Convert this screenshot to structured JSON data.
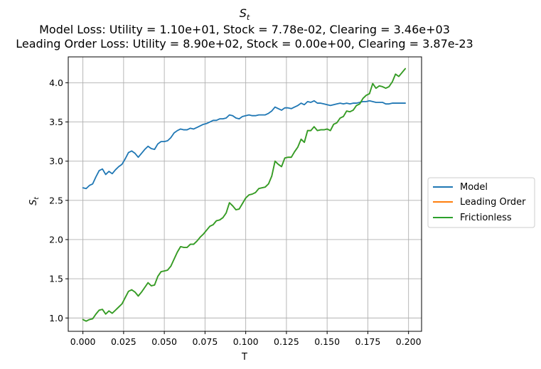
{
  "chart_data": {
    "type": "line",
    "title_main": "S",
    "title_sub": "t",
    "title_line2": "Model Loss: Utility = 1.10e+01, Stock = 7.78e-02, Clearing = 3.46e+03",
    "title_line3": "Leading Order Loss: Utility = 8.90e+02, Stock = 0.00e+00, Clearing = 3.87e-23",
    "xlabel": "T",
    "ylabel_main": "S",
    "ylabel_sub": "t",
    "xlim": [
      -0.009,
      0.208
    ],
    "ylim": [
      0.83,
      4.33
    ],
    "xticks": [
      0.0,
      0.025,
      0.05,
      0.075,
      0.1,
      0.125,
      0.15,
      0.175,
      0.2
    ],
    "xtick_labels": [
      "0.000",
      "0.025",
      "0.050",
      "0.075",
      "0.100",
      "0.125",
      "0.150",
      "0.175",
      "0.200"
    ],
    "yticks": [
      1.0,
      1.5,
      2.0,
      2.5,
      3.0,
      3.5,
      4.0
    ],
    "ytick_labels": [
      "1.0",
      "1.5",
      "2.0",
      "2.5",
      "3.0",
      "3.5",
      "4.0"
    ],
    "grid": true,
    "legend_position": "outside-right",
    "series": [
      {
        "name": "Model",
        "color": "#1f77b4",
        "x": [
          0.0,
          0.002,
          0.004,
          0.006,
          0.008,
          0.01,
          0.012,
          0.014,
          0.016,
          0.018,
          0.02,
          0.022,
          0.024,
          0.026,
          0.028,
          0.03,
          0.032,
          0.034,
          0.036,
          0.038,
          0.04,
          0.042,
          0.044,
          0.046,
          0.048,
          0.05,
          0.052,
          0.054,
          0.056,
          0.058,
          0.06,
          0.062,
          0.064,
          0.066,
          0.068,
          0.07,
          0.072,
          0.074,
          0.076,
          0.078,
          0.08,
          0.082,
          0.084,
          0.086,
          0.088,
          0.09,
          0.092,
          0.094,
          0.096,
          0.098,
          0.1,
          0.102,
          0.104,
          0.106,
          0.108,
          0.11,
          0.112,
          0.114,
          0.116,
          0.118,
          0.12,
          0.122,
          0.124,
          0.126,
          0.128,
          0.13,
          0.132,
          0.134,
          0.136,
          0.138,
          0.14,
          0.142,
          0.144,
          0.146,
          0.148,
          0.15,
          0.152,
          0.154,
          0.156,
          0.158,
          0.16,
          0.162,
          0.164,
          0.166,
          0.168,
          0.17,
          0.172,
          0.174,
          0.176,
          0.178,
          0.18,
          0.182,
          0.184,
          0.186,
          0.188,
          0.19,
          0.192,
          0.194,
          0.196,
          0.198
        ],
        "y": [
          2.66,
          2.65,
          2.69,
          2.71,
          2.8,
          2.88,
          2.9,
          2.83,
          2.87,
          2.84,
          2.89,
          2.93,
          2.96,
          3.03,
          3.11,
          3.13,
          3.1,
          3.05,
          3.1,
          3.15,
          3.19,
          3.16,
          3.15,
          3.22,
          3.25,
          3.25,
          3.26,
          3.3,
          3.36,
          3.39,
          3.41,
          3.4,
          3.4,
          3.42,
          3.41,
          3.43,
          3.45,
          3.47,
          3.48,
          3.5,
          3.52,
          3.52,
          3.54,
          3.54,
          3.55,
          3.59,
          3.58,
          3.55,
          3.54,
          3.57,
          3.58,
          3.59,
          3.58,
          3.58,
          3.59,
          3.59,
          3.59,
          3.61,
          3.64,
          3.69,
          3.67,
          3.65,
          3.68,
          3.68,
          3.67,
          3.69,
          3.71,
          3.74,
          3.72,
          3.76,
          3.75,
          3.77,
          3.74,
          3.74,
          3.73,
          3.72,
          3.71,
          3.72,
          3.73,
          3.74,
          3.73,
          3.74,
          3.73,
          3.74,
          3.74,
          3.75,
          3.76,
          3.76,
          3.77,
          3.76,
          3.75,
          3.75,
          3.75,
          3.73,
          3.73,
          3.74,
          3.74,
          3.74,
          3.74,
          3.74
        ]
      },
      {
        "name": "Leading Order",
        "color": "#ff7f0e",
        "x": [
          0.0,
          0.002,
          0.004,
          0.006,
          0.008,
          0.01,
          0.012,
          0.014,
          0.016,
          0.018,
          0.02,
          0.022,
          0.024,
          0.026,
          0.028,
          0.03,
          0.032,
          0.034,
          0.036,
          0.038,
          0.04,
          0.042,
          0.044,
          0.046,
          0.048,
          0.05,
          0.052,
          0.054,
          0.056,
          0.058,
          0.06,
          0.062,
          0.064,
          0.066,
          0.068,
          0.07,
          0.072,
          0.074,
          0.076,
          0.078,
          0.08,
          0.082,
          0.084,
          0.086,
          0.088,
          0.09,
          0.092,
          0.094,
          0.096,
          0.098,
          0.1,
          0.102,
          0.104,
          0.106,
          0.108,
          0.11,
          0.112,
          0.114,
          0.116,
          0.118,
          0.12,
          0.122,
          0.124,
          0.126,
          0.128,
          0.13,
          0.132,
          0.134,
          0.136,
          0.138,
          0.14,
          0.142,
          0.144,
          0.146,
          0.148,
          0.15,
          0.152,
          0.154,
          0.156,
          0.158,
          0.16,
          0.162,
          0.164,
          0.166,
          0.168,
          0.17,
          0.172,
          0.174,
          0.176,
          0.178,
          0.18,
          0.182,
          0.184,
          0.186,
          0.188,
          0.19,
          0.192,
          0.194,
          0.196,
          0.198
        ],
        "y": [
          0.98,
          0.96,
          0.98,
          0.99,
          1.05,
          1.1,
          1.11,
          1.05,
          1.09,
          1.06,
          1.1,
          1.14,
          1.18,
          1.26,
          1.34,
          1.36,
          1.33,
          1.28,
          1.33,
          1.39,
          1.45,
          1.41,
          1.42,
          1.53,
          1.59,
          1.6,
          1.61,
          1.66,
          1.75,
          1.84,
          1.91,
          1.9,
          1.9,
          1.94,
          1.94,
          1.98,
          2.03,
          2.07,
          2.12,
          2.17,
          2.19,
          2.24,
          2.25,
          2.28,
          2.34,
          2.47,
          2.43,
          2.38,
          2.39,
          2.46,
          2.53,
          2.57,
          2.58,
          2.6,
          2.65,
          2.66,
          2.67,
          2.71,
          2.81,
          3.0,
          2.96,
          2.93,
          3.04,
          3.05,
          3.05,
          3.12,
          3.18,
          3.28,
          3.24,
          3.39,
          3.39,
          3.44,
          3.39,
          3.4,
          3.4,
          3.41,
          3.39,
          3.47,
          3.49,
          3.55,
          3.57,
          3.64,
          3.63,
          3.65,
          3.71,
          3.73,
          3.8,
          3.84,
          3.86,
          3.99,
          3.93,
          3.96,
          3.95,
          3.93,
          3.95,
          4.01,
          4.11,
          4.08,
          4.13,
          4.18
        ]
      },
      {
        "name": "Frictionless",
        "color": "#2ca02c",
        "x": [
          0.0,
          0.002,
          0.004,
          0.006,
          0.008,
          0.01,
          0.012,
          0.014,
          0.016,
          0.018,
          0.02,
          0.022,
          0.024,
          0.026,
          0.028,
          0.03,
          0.032,
          0.034,
          0.036,
          0.038,
          0.04,
          0.042,
          0.044,
          0.046,
          0.048,
          0.05,
          0.052,
          0.054,
          0.056,
          0.058,
          0.06,
          0.062,
          0.064,
          0.066,
          0.068,
          0.07,
          0.072,
          0.074,
          0.076,
          0.078,
          0.08,
          0.082,
          0.084,
          0.086,
          0.088,
          0.09,
          0.092,
          0.094,
          0.096,
          0.098,
          0.1,
          0.102,
          0.104,
          0.106,
          0.108,
          0.11,
          0.112,
          0.114,
          0.116,
          0.118,
          0.12,
          0.122,
          0.124,
          0.126,
          0.128,
          0.13,
          0.132,
          0.134,
          0.136,
          0.138,
          0.14,
          0.142,
          0.144,
          0.146,
          0.148,
          0.15,
          0.152,
          0.154,
          0.156,
          0.158,
          0.16,
          0.162,
          0.164,
          0.166,
          0.168,
          0.17,
          0.172,
          0.174,
          0.176,
          0.178,
          0.18,
          0.182,
          0.184,
          0.186,
          0.188,
          0.19,
          0.192,
          0.194,
          0.196,
          0.198
        ],
        "y": [
          0.98,
          0.96,
          0.98,
          0.99,
          1.05,
          1.1,
          1.11,
          1.05,
          1.09,
          1.06,
          1.1,
          1.14,
          1.18,
          1.26,
          1.34,
          1.36,
          1.33,
          1.28,
          1.33,
          1.39,
          1.45,
          1.41,
          1.42,
          1.53,
          1.59,
          1.6,
          1.61,
          1.66,
          1.75,
          1.84,
          1.91,
          1.9,
          1.9,
          1.94,
          1.94,
          1.98,
          2.03,
          2.07,
          2.12,
          2.17,
          2.19,
          2.24,
          2.25,
          2.28,
          2.34,
          2.47,
          2.43,
          2.38,
          2.39,
          2.46,
          2.53,
          2.57,
          2.58,
          2.6,
          2.65,
          2.66,
          2.67,
          2.71,
          2.81,
          3.0,
          2.96,
          2.93,
          3.04,
          3.05,
          3.05,
          3.12,
          3.18,
          3.28,
          3.24,
          3.39,
          3.39,
          3.44,
          3.39,
          3.4,
          3.4,
          3.41,
          3.39,
          3.47,
          3.49,
          3.55,
          3.57,
          3.64,
          3.63,
          3.65,
          3.71,
          3.73,
          3.8,
          3.84,
          3.86,
          3.99,
          3.93,
          3.96,
          3.95,
          3.93,
          3.95,
          4.01,
          4.11,
          4.08,
          4.13,
          4.18
        ]
      }
    ]
  }
}
